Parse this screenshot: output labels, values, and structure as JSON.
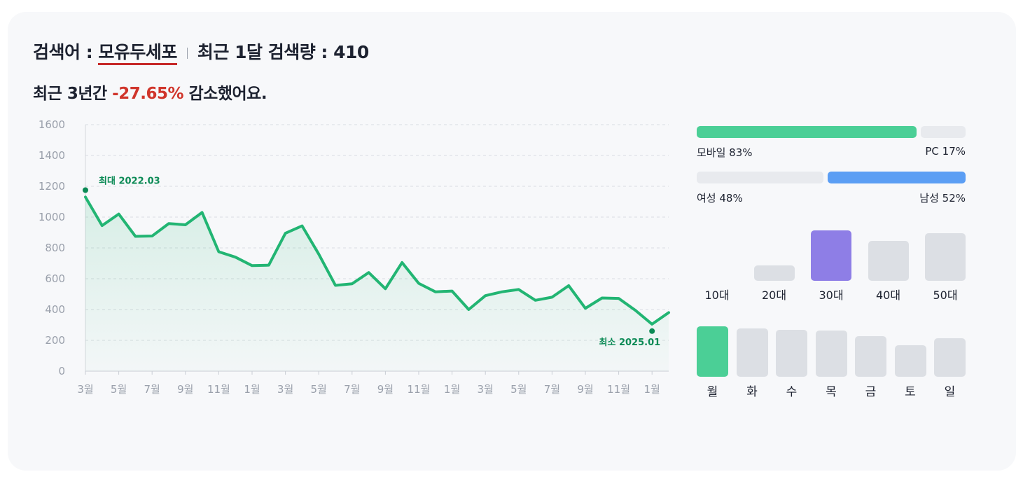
{
  "header": {
    "keyword_label": "검색어 : ",
    "keyword": "모유두세포",
    "volume_label": "최근 1달 검색량 : ",
    "volume": "410"
  },
  "summary": {
    "prefix": "최근 3년간 ",
    "change": "-27.65%",
    "suffix": " 감소했어요."
  },
  "device": {
    "mobile_label": "모바일 83%",
    "pc_label": "PC 17%",
    "mobile_ratio": 0.83,
    "pc_ratio": 0.17
  },
  "gender": {
    "female_label": "여성 48%",
    "male_label": "남성 52%",
    "female_ratio": 0.48,
    "male_ratio": 0.52
  },
  "colors": {
    "line": "#22b573",
    "accent_green": "#4bcf96",
    "male_blue": "#5b9ef4",
    "highlight_purple": "#8e7ee6",
    "bar_gray": "#dcdfe4",
    "track_gray": "#e8eaee",
    "negative_red": "#d0352b"
  },
  "chart_data": [
    {
      "type": "area",
      "y_ticks": [
        "1600",
        "1400",
        "1200",
        "1000",
        "800",
        "600",
        "400",
        "200",
        "0"
      ],
      "ylim": [
        0,
        1600
      ],
      "x_tick_labels": [
        "3월",
        "5월",
        "7월",
        "9월",
        "11월",
        "1월",
        "3월",
        "5월",
        "7월",
        "9월",
        "11월",
        "1월",
        "3월",
        "5월",
        "7월",
        "9월",
        "11월",
        "1월"
      ],
      "values": [
        1130,
        945,
        1020,
        875,
        877,
        958,
        950,
        1030,
        775,
        740,
        685,
        688,
        895,
        943,
        760,
        557,
        567,
        640,
        535,
        705,
        570,
        515,
        520,
        400,
        490,
        515,
        530,
        460,
        480,
        555,
        408,
        475,
        472,
        395,
        305,
        380
      ],
      "max_marker": {
        "label": "최대 2022.03",
        "value": 1175
      },
      "min_marker": {
        "label": "최소 2025.01",
        "value": 260
      },
      "grid": true
    },
    {
      "type": "bar",
      "categories": [
        "10대",
        "20대",
        "30대",
        "40대",
        "50대"
      ],
      "values": [
        0,
        0.3,
        1.0,
        0.79,
        0.94
      ],
      "highlight": "30대"
    },
    {
      "type": "bar",
      "categories": [
        "월",
        "화",
        "수",
        "목",
        "금",
        "토",
        "일"
      ],
      "values": [
        1.0,
        0.96,
        0.93,
        0.92,
        0.8,
        0.62,
        0.76
      ],
      "highlight": "월"
    }
  ]
}
